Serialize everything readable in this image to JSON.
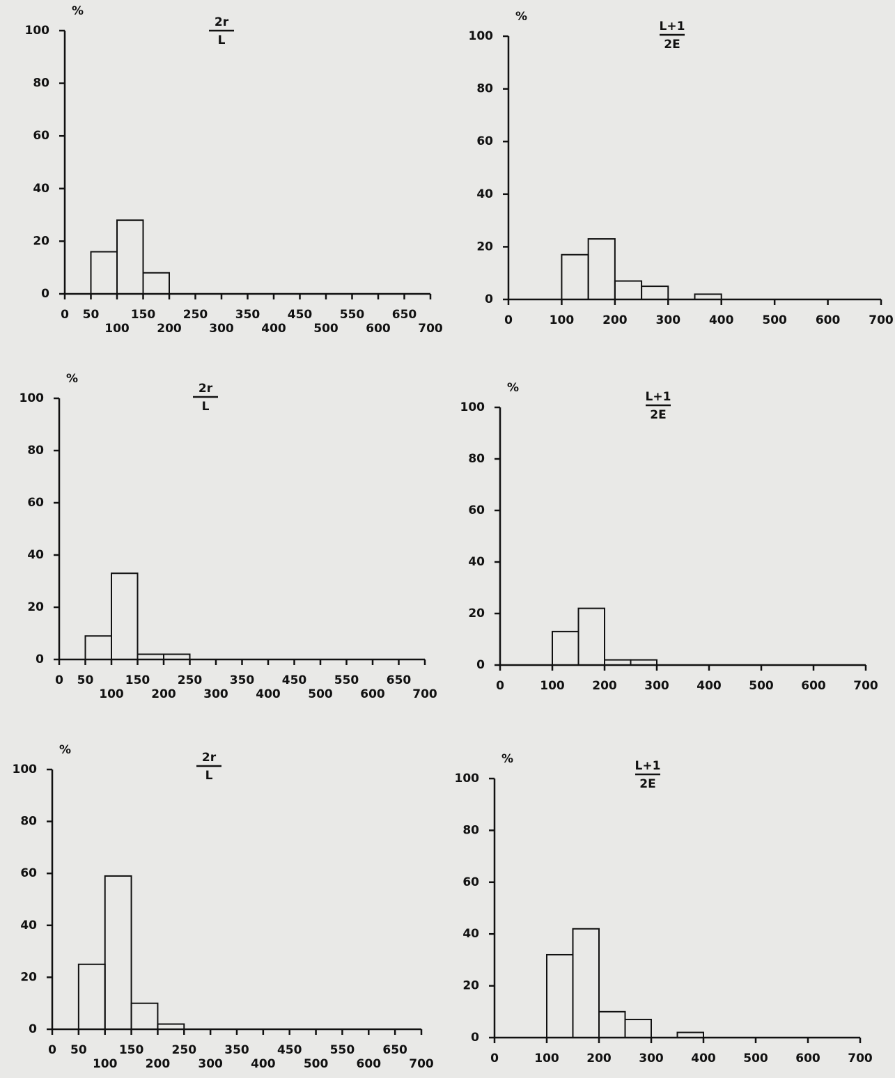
{
  "chart_data": [
    {
      "type": "histogram",
      "title": {
        "numerator": "2r",
        "denominator": "L"
      },
      "ylabel": "%",
      "bins": [
        50,
        100,
        150,
        200
      ],
      "values": [
        16,
        28,
        8
      ],
      "xlim": [
        0,
        700
      ],
      "xticks": [
        0,
        50,
        100,
        150,
        200,
        250,
        300,
        350,
        400,
        450,
        500,
        550,
        600,
        650,
        700
      ],
      "ylim": [
        0,
        100
      ],
      "yticks": [
        0,
        20,
        40,
        60,
        80,
        100
      ],
      "color": "#111111"
    },
    {
      "type": "histogram",
      "title": {
        "numerator": "L+1",
        "denominator": "2E"
      },
      "ylabel": "%",
      "bins": [
        100,
        150,
        200,
        250,
        300,
        350,
        400
      ],
      "values": [
        17,
        23,
        7,
        5,
        0,
        2
      ],
      "xlim": [
        0,
        700
      ],
      "xticks": [
        0,
        100,
        200,
        300,
        400,
        500,
        600,
        700
      ],
      "ylim": [
        0,
        100
      ],
      "yticks": [
        0,
        20,
        40,
        60,
        80,
        100
      ],
      "color": "#111111"
    },
    {
      "type": "histogram",
      "title": {
        "numerator": "2r",
        "denominator": "L"
      },
      "ylabel": "%",
      "bins": [
        50,
        100,
        150,
        200,
        250
      ],
      "values": [
        9,
        33,
        2,
        2
      ],
      "xlim": [
        0,
        700
      ],
      "xticks": [
        0,
        50,
        100,
        150,
        200,
        250,
        300,
        350,
        400,
        450,
        500,
        550,
        600,
        650,
        700
      ],
      "ylim": [
        0,
        100
      ],
      "yticks": [
        0,
        20,
        40,
        60,
        80,
        100
      ],
      "color": "#111111"
    },
    {
      "type": "histogram",
      "title": {
        "numerator": "L+1",
        "denominator": "2E"
      },
      "ylabel": "%",
      "bins": [
        100,
        150,
        200,
        250,
        300
      ],
      "values": [
        13,
        22,
        2,
        2
      ],
      "xlim": [
        0,
        700
      ],
      "xticks": [
        0,
        100,
        200,
        300,
        400,
        500,
        600,
        700
      ],
      "ylim": [
        0,
        100
      ],
      "yticks": [
        0,
        20,
        40,
        60,
        80,
        100
      ],
      "color": "#111111"
    },
    {
      "type": "histogram",
      "title": {
        "numerator": "2r",
        "denominator": "L"
      },
      "ylabel": "%",
      "bins": [
        50,
        100,
        150,
        200,
        250
      ],
      "values": [
        25,
        59,
        10,
        2
      ],
      "xlim": [
        0,
        700
      ],
      "xticks": [
        0,
        50,
        100,
        150,
        200,
        250,
        300,
        350,
        400,
        450,
        500,
        550,
        600,
        650,
        700
      ],
      "ylim": [
        0,
        100
      ],
      "yticks": [
        0,
        20,
        40,
        60,
        80,
        100
      ],
      "color": "#111111"
    },
    {
      "type": "histogram",
      "title": {
        "numerator": "L+1",
        "denominator": "2E"
      },
      "ylabel": "%",
      "bins": [
        100,
        150,
        200,
        250,
        300,
        350,
        400
      ],
      "values": [
        32,
        42,
        10,
        7,
        0,
        2
      ],
      "xlim": [
        0,
        700
      ],
      "xticks": [
        0,
        100,
        200,
        300,
        400,
        500,
        600,
        700
      ],
      "ylim": [
        0,
        100
      ],
      "yticks": [
        0,
        20,
        40,
        60,
        80,
        100
      ],
      "color": "#111111"
    }
  ]
}
